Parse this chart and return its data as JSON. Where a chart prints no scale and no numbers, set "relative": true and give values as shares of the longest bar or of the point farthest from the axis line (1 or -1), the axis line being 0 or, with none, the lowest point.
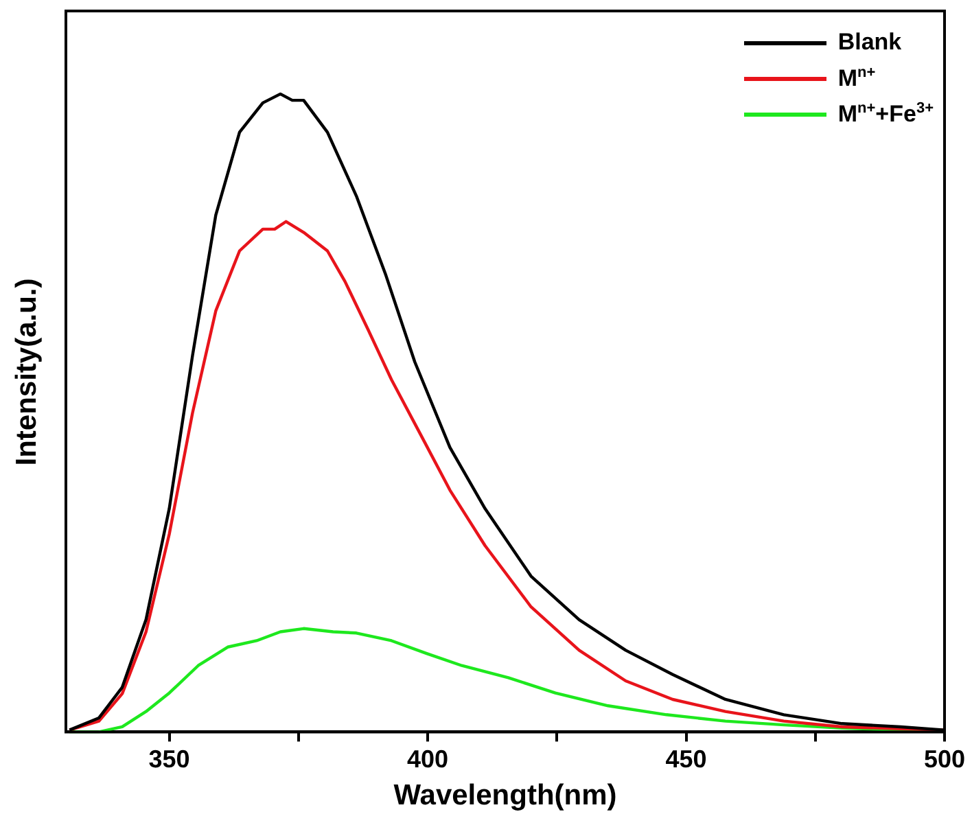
{
  "chart_data": {
    "type": "line",
    "relative": true,
    "xlabel": "Wavelength(nm)",
    "ylabel": "Intensity(a.u.)",
    "xlim": [
      330,
      500
    ],
    "xticks": [
      350,
      {
        "value": 375,
        "label": null
      },
      400,
      {
        "value": 425,
        "label": null
      },
      450,
      {
        "value": 475,
        "label": null
      },
      500
    ],
    "tick_labels": "x",
    "legend": "top right",
    "grid": false,
    "series": [
      {
        "name": "Blank",
        "color": "#000000",
        "x": [
          330.7,
          336.4,
          340.9,
          345.5,
          350,
          354.5,
          359,
          363.6,
          368.1,
          371.5,
          373.8,
          376,
          380.6,
          386.2,
          391.9,
          397.5,
          404.3,
          411.1,
          420,
          429.3,
          438.3,
          447.4,
          457.6,
          468.9,
          480.2,
          491.5,
          500
        ],
        "values": [
          0.003,
          0.022,
          0.07,
          0.176,
          0.35,
          0.59,
          0.81,
          0.94,
          0.986,
          1,
          0.99,
          0.99,
          0.94,
          0.84,
          0.716,
          0.58,
          0.446,
          0.35,
          0.244,
          0.176,
          0.128,
          0.09,
          0.051,
          0.027,
          0.013,
          0.008,
          0.003
        ]
      },
      {
        "name": "M$^{n+}$",
        "color": "#e8141b",
        "x": [
          330.7,
          336.4,
          340.9,
          345.5,
          350,
          354.5,
          359,
          363.6,
          368.1,
          370.4,
          372.6,
          376,
          380.6,
          384,
          388.5,
          393,
          398.7,
          404.3,
          411.1,
          420,
          429.3,
          438.3,
          447.4,
          457.6,
          468.9,
          480.2,
          491.5,
          500
        ],
        "values": [
          0.003,
          0.017,
          0.06,
          0.157,
          0.31,
          0.5,
          0.66,
          0.754,
          0.788,
          0.788,
          0.8,
          0.783,
          0.754,
          0.706,
          0.63,
          0.552,
          0.465,
          0.379,
          0.292,
          0.196,
          0.128,
          0.08,
          0.051,
          0.032,
          0.017,
          0.008,
          0.005,
          0.003
        ]
      },
      {
        "name": "M$^{n+}$+Fe$^{3+}$",
        "color": "#1ee81e",
        "x": [
          330.7,
          336.4,
          340.9,
          345.5,
          350,
          355.6,
          361.3,
          366.9,
          371.5,
          376,
          381.7,
          386.2,
          393,
          399.8,
          406.6,
          415.6,
          424.7,
          434.9,
          446.2,
          457.6,
          468.9,
          480.2,
          491.5,
          500
        ],
        "values": [
          0,
          0,
          0.008,
          0.032,
          0.061,
          0.104,
          0.133,
          0.143,
          0.157,
          0.162,
          0.157,
          0.155,
          0.143,
          0.123,
          0.104,
          0.085,
          0.061,
          0.041,
          0.027,
          0.017,
          0.011,
          0.006,
          0.003,
          0.002
        ]
      }
    ]
  }
}
